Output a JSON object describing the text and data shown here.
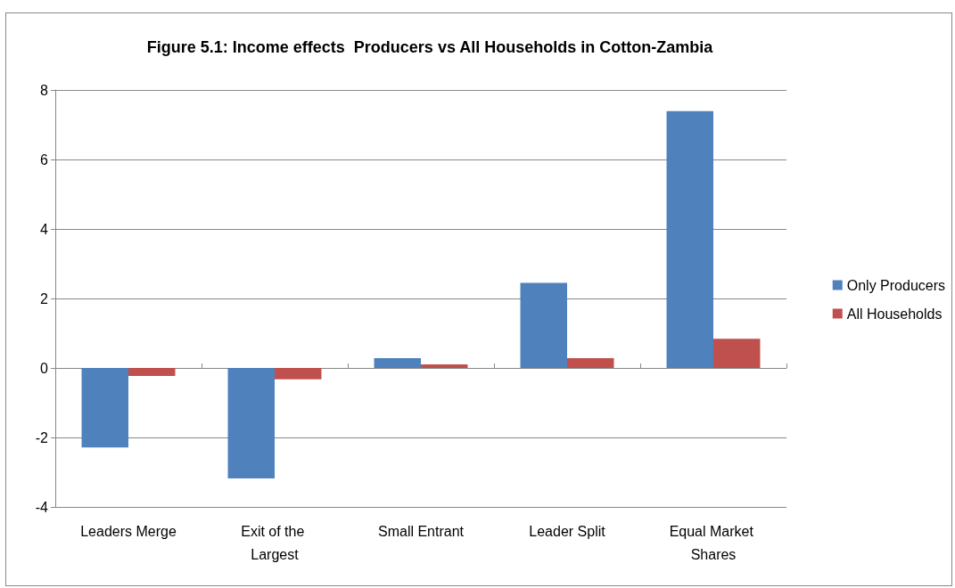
{
  "chart_data": {
    "type": "bar",
    "title": "Figure 5.1: Income effects  Producers vs All Households in Cotton-Zambia",
    "categories": [
      "Leaders Merge",
      "Exit of the Largest",
      "Small Entrant",
      "Leader Split",
      "Equal Market Shares"
    ],
    "series": [
      {
        "name": "Only Producers",
        "color": "#4f81bd",
        "values": [
          -2.29,
          -3.18,
          0.28,
          2.45,
          7.39
        ]
      },
      {
        "name": "All Households",
        "color": "#c0504d",
        "values": [
          -0.23,
          -0.33,
          0.1,
          0.28,
          0.84
        ]
      }
    ],
    "ylim": [
      -4,
      8
    ],
    "yticks": [
      -4,
      -2,
      0,
      2,
      4,
      6,
      8
    ],
    "grid": "y",
    "legend": "right"
  }
}
